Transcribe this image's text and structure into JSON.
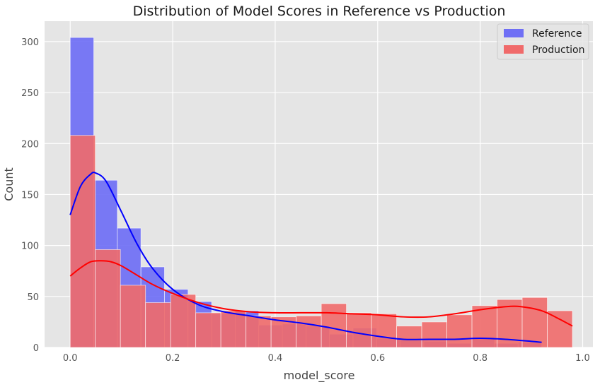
{
  "chart_data": {
    "type": "histogram",
    "title": "Distribution of Model Scores in Reference vs Production",
    "xlabel": "model_score",
    "ylabel": "Count",
    "xlim": [
      -0.05,
      1.02
    ],
    "ylim": [
      0,
      320
    ],
    "xticks": [
      0.0,
      0.2,
      0.4,
      0.6,
      0.8,
      1.0
    ],
    "xtick_labels": [
      "0.0",
      "0.2",
      "0.4",
      "0.6",
      "0.8",
      "1.0"
    ],
    "yticks": [
      0,
      50,
      100,
      150,
      200,
      250,
      300
    ],
    "ytick_labels": [
      "0",
      "50",
      "100",
      "150",
      "200",
      "250",
      "300"
    ],
    "grid": true,
    "legend_position": "top-right",
    "series": [
      {
        "name": "Reference",
        "color": "#0000ff",
        "bar_color": "#6f6ff5",
        "bins": [
          {
            "x0": 0.0,
            "x1": 0.046,
            "count": 304
          },
          {
            "x0": 0.046,
            "x1": 0.092,
            "count": 164
          },
          {
            "x0": 0.092,
            "x1": 0.138,
            "count": 117
          },
          {
            "x0": 0.138,
            "x1": 0.184,
            "count": 79
          },
          {
            "x0": 0.184,
            "x1": 0.23,
            "count": 57
          },
          {
            "x0": 0.23,
            "x1": 0.276,
            "count": 45
          },
          {
            "x0": 0.276,
            "x1": 0.322,
            "count": 33
          },
          {
            "x0": 0.322,
            "x1": 0.368,
            "count": 36
          },
          {
            "x0": 0.368,
            "x1": 0.414,
            "count": 22
          },
          {
            "x0": 0.414,
            "x1": 0.46,
            "count": 23
          },
          {
            "x0": 0.46,
            "x1": 0.506,
            "count": 21
          },
          {
            "x0": 0.506,
            "x1": 0.552,
            "count": 13
          },
          {
            "x0": 0.552,
            "x1": 0.598,
            "count": 19
          },
          {
            "x0": 0.598,
            "x1": 0.644,
            "count": 9
          },
          {
            "x0": 0.644,
            "x1": 0.69,
            "count": 7
          },
          {
            "x0": 0.69,
            "x1": 0.736,
            "count": 6
          },
          {
            "x0": 0.736,
            "x1": 0.782,
            "count": 4
          },
          {
            "x0": 0.782,
            "x1": 0.828,
            "count": 10
          },
          {
            "x0": 0.828,
            "x1": 0.874,
            "count": 4
          },
          {
            "x0": 0.874,
            "x1": 0.92,
            "count": 5
          }
        ],
        "kde": {
          "x": [
            0.0,
            0.02,
            0.04,
            0.05,
            0.07,
            0.1,
            0.13,
            0.16,
            0.2,
            0.25,
            0.3,
            0.35,
            0.4,
            0.45,
            0.5,
            0.55,
            0.6,
            0.65,
            0.7,
            0.75,
            0.8,
            0.85,
            0.9,
            0.92
          ],
          "y": [
            130,
            158,
            170,
            171,
            163,
            133,
            102,
            78,
            57,
            42,
            35,
            31,
            27,
            24,
            20,
            15,
            11,
            8,
            8,
            8,
            9,
            8,
            6,
            5
          ]
        }
      },
      {
        "name": "Production",
        "color": "#ff0000",
        "bar_color": "#f06a6a",
        "bins": [
          {
            "x0": 0.0,
            "x1": 0.049,
            "count": 208
          },
          {
            "x0": 0.049,
            "x1": 0.098,
            "count": 96
          },
          {
            "x0": 0.098,
            "x1": 0.147,
            "count": 61
          },
          {
            "x0": 0.147,
            "x1": 0.196,
            "count": 44
          },
          {
            "x0": 0.196,
            "x1": 0.245,
            "count": 52
          },
          {
            "x0": 0.245,
            "x1": 0.294,
            "count": 34
          },
          {
            "x0": 0.294,
            "x1": 0.343,
            "count": 36
          },
          {
            "x0": 0.343,
            "x1": 0.392,
            "count": 31
          },
          {
            "x0": 0.392,
            "x1": 0.441,
            "count": 30
          },
          {
            "x0": 0.441,
            "x1": 0.49,
            "count": 31
          },
          {
            "x0": 0.49,
            "x1": 0.539,
            "count": 43
          },
          {
            "x0": 0.539,
            "x1": 0.588,
            "count": 34
          },
          {
            "x0": 0.588,
            "x1": 0.637,
            "count": 33
          },
          {
            "x0": 0.637,
            "x1": 0.686,
            "count": 21
          },
          {
            "x0": 0.686,
            "x1": 0.735,
            "count": 25
          },
          {
            "x0": 0.735,
            "x1": 0.784,
            "count": 32
          },
          {
            "x0": 0.784,
            "x1": 0.833,
            "count": 41
          },
          {
            "x0": 0.833,
            "x1": 0.882,
            "count": 47
          },
          {
            "x0": 0.882,
            "x1": 0.931,
            "count": 49
          },
          {
            "x0": 0.931,
            "x1": 0.98,
            "count": 36
          }
        ],
        "kde": {
          "x": [
            0.0,
            0.02,
            0.04,
            0.06,
            0.08,
            0.1,
            0.13,
            0.16,
            0.2,
            0.25,
            0.3,
            0.35,
            0.4,
            0.45,
            0.5,
            0.55,
            0.6,
            0.65,
            0.7,
            0.75,
            0.8,
            0.85,
            0.88,
            0.92,
            0.95,
            0.98
          ],
          "y": [
            70,
            78,
            84,
            85,
            84,
            80,
            71,
            62,
            53,
            44,
            38,
            35,
            34,
            34,
            34,
            33,
            32,
            30,
            30,
            33,
            37,
            40,
            40,
            36,
            29,
            21
          ]
        }
      }
    ]
  }
}
